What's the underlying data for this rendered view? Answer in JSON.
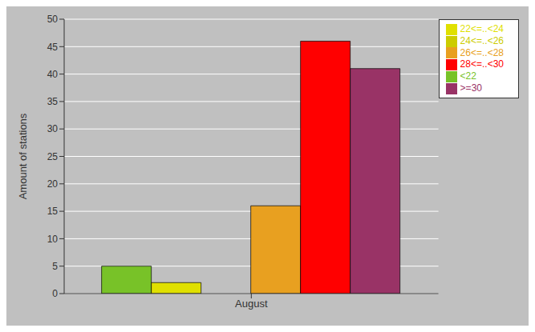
{
  "chart_data": {
    "type": "bar",
    "categories": [
      "August"
    ],
    "series": [
      {
        "name": "<22",
        "color": "#78c228",
        "values": [
          5
        ]
      },
      {
        "name": "22<=..<24",
        "color": "#e0e000",
        "values": [
          2
        ]
      },
      {
        "name": "24<=..<26",
        "color": "#cccc00",
        "values": [
          0
        ]
      },
      {
        "name": "26<=..<28",
        "color": "#e8a020",
        "values": [
          16
        ]
      },
      {
        "name": "28<=..<30",
        "color": "#ff0000",
        "values": [
          46
        ]
      },
      {
        "name": ">=30",
        "color": "#993366",
        "values": [
          41
        ]
      }
    ],
    "ylabel": "Amount of stations",
    "ylim": [
      0,
      50
    ],
    "yticks": [
      0,
      5,
      10,
      15,
      20,
      25,
      30,
      35,
      40,
      45,
      50
    ],
    "grid": true,
    "legend": "upper right"
  }
}
